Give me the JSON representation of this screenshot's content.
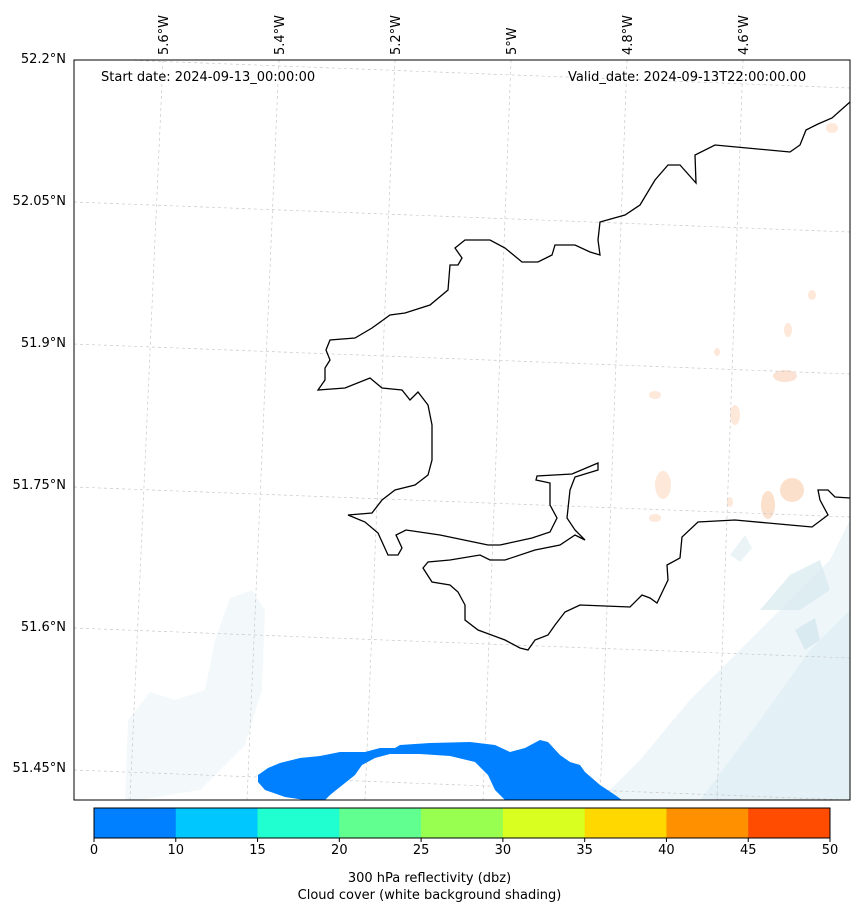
{
  "map": {
    "start_date": "Start date: 2024-09-13_00:00:00",
    "valid_date": "Valid_date: 2024-09-13T22:00:00.00",
    "lat_labels": [
      "52.2°N",
      "52.05°N",
      "51.9°N",
      "51.75°N",
      "51.6°N",
      "51.45°N"
    ],
    "lon_labels": [
      "5.6°W",
      "5.4°W",
      "5.2°W",
      "5°W",
      "4.8°W",
      "4.6°W"
    ],
    "coastline_color": "#000000",
    "cloud_color": "#dcecf2",
    "reflectivity_blob_color": "#0080ff"
  },
  "colorbar": {
    "ticks": [
      "0",
      "10",
      "15",
      "20",
      "25",
      "30",
      "35",
      "40",
      "45",
      "50"
    ],
    "colors": [
      "#0080ff",
      "#00c8ff",
      "#20ffd0",
      "#60ff90",
      "#98ff50",
      "#d8ff20",
      "#ffd800",
      "#ff9000",
      "#ff4c00"
    ],
    "caption_line1": "300 hPa reflectivity (dbz)",
    "caption_line2": "Cloud cover (white background shading)"
  }
}
